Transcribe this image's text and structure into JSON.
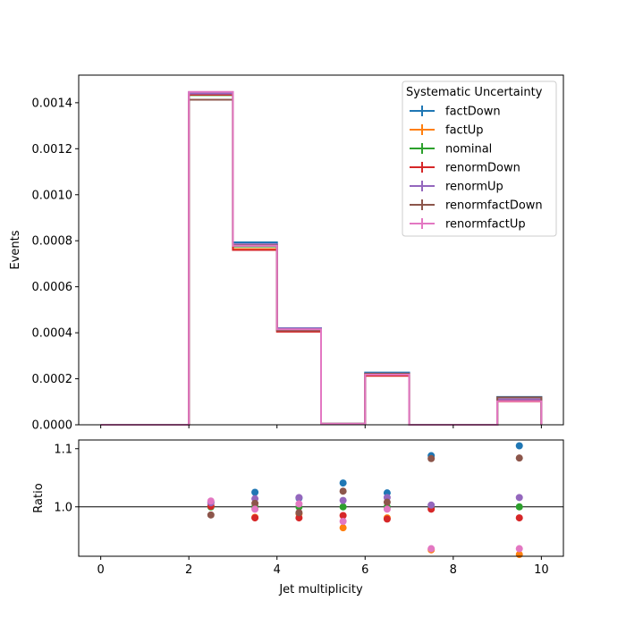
{
  "chart_data": [
    {
      "type": "step",
      "xlabel": "",
      "ylabel": "Events",
      "xlim": [
        -0.5,
        10.5
      ],
      "ylim": [
        0,
        0.00152
      ],
      "yticks": [
        "0.0000",
        "0.0002",
        "0.0004",
        "0.0006",
        "0.0008",
        "0.0010",
        "0.0012",
        "0.0014"
      ],
      "ytick_values": [
        0,
        0.0002,
        0.0004,
        0.0006,
        0.0008,
        0.001,
        0.0012,
        0.0014
      ],
      "bin_edges": [
        0,
        1,
        2,
        3,
        4,
        5,
        6,
        7,
        8,
        9,
        10
      ],
      "legend": {
        "title": "Systematic Uncertainty",
        "loc": "upper right"
      },
      "series": [
        {
          "name": "factDown",
          "color": "#1f77b4",
          "values": [
            0,
            0,
            0.001445,
            0.000793,
            0.00042,
            4.5e-06,
            0.000227,
            0,
            0,
            0.000121
          ]
        },
        {
          "name": "factUp",
          "color": "#ff7f0e",
          "values": [
            0,
            0,
            0.001435,
            0.000764,
            0.00041,
            4e-06,
            0.000214,
            0,
            0,
            0.000101
          ]
        },
        {
          "name": "nominal",
          "color": "#2ca02c",
          "values": [
            0,
            0,
            0.001433,
            0.000775,
            0.000413,
            4.3e-06,
            0.000218,
            0,
            0,
            0.00011
          ]
        },
        {
          "name": "renormDown",
          "color": "#d62728",
          "values": [
            0,
            0,
            0.001435,
            0.00076,
            0.000405,
            4.2e-06,
            0.000213,
            0,
            0,
            0.000108
          ]
        },
        {
          "name": "renormUp",
          "color": "#9467bd",
          "values": [
            0,
            0,
            0.00144,
            0.000785,
            0.000419,
            4.4e-06,
            0.000222,
            0,
            0,
            0.000111
          ]
        },
        {
          "name": "renormfactDown",
          "color": "#8c564b",
          "values": [
            0,
            0,
            0.001413,
            0.00078,
            0.00041,
            4.4e-06,
            0.000222,
            0,
            0,
            0.000119
          ]
        },
        {
          "name": "renormfactUp",
          "color": "#e377c2",
          "values": [
            0,
            0,
            0.001447,
            0.000778,
            0.000415,
            4.2e-06,
            0.000218,
            0,
            0,
            0.000102
          ]
        }
      ]
    },
    {
      "type": "scatter",
      "xlabel": "Jet multiplicity",
      "ylabel": "Ratio",
      "xlim": [
        -0.5,
        10.5
      ],
      "ylim": [
        0.915,
        1.115
      ],
      "xticks": [
        0,
        2,
        4,
        6,
        8,
        10
      ],
      "yticks": [
        "1.0",
        "1.1"
      ],
      "ytick_values": [
        1.0,
        1.1
      ],
      "reference_line": 1.0,
      "x": [
        2.5,
        3.5,
        4.5,
        5.5,
        6.5,
        7.5,
        9.5
      ],
      "series": [
        {
          "name": "factDown",
          "color": "#1f77b4",
          "values": [
            1.008,
            1.025,
            1.015,
            1.041,
            1.024,
            1.088,
            1.105
          ]
        },
        {
          "name": "factUp",
          "color": "#ff7f0e",
          "values": [
            1.002,
            0.982,
            0.988,
            0.964,
            0.981,
            0.926,
            0.918
          ]
        },
        {
          "name": "nominal",
          "color": "#2ca02c",
          "values": [
            1.0,
            1.0,
            1.0,
            1.0,
            1.0,
            1.0,
            1.0
          ]
        },
        {
          "name": "renormDown",
          "color": "#d62728",
          "values": [
            1.001,
            0.981,
            0.981,
            0.985,
            0.979,
            0.996,
            0.981
          ]
        },
        {
          "name": "renormUp",
          "color": "#9467bd",
          "values": [
            1.007,
            1.014,
            1.016,
            1.011,
            1.016,
            1.003,
            1.016
          ]
        },
        {
          "name": "renormfactDown",
          "color": "#8c564b",
          "values": [
            0.986,
            1.006,
            0.99,
            1.027,
            1.008,
            1.083,
            1.084
          ]
        },
        {
          "name": "renormfactUp",
          "color": "#e377c2",
          "values": [
            1.01,
            0.996,
            1.005,
            0.975,
            0.996,
            0.928,
            0.928
          ]
        }
      ]
    }
  ]
}
